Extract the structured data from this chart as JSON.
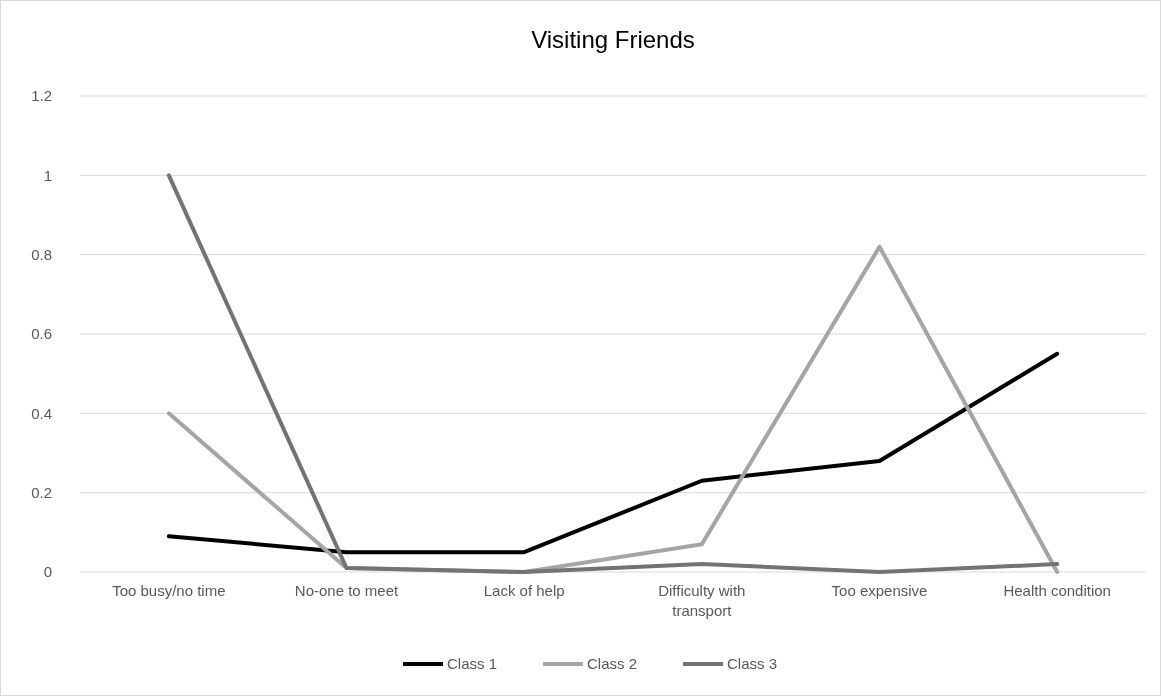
{
  "chart_data": {
    "type": "line",
    "title": "Visiting Friends",
    "categories": [
      "Too busy/no time",
      "No-one to meet",
      "Lack of help",
      "Difficulty with transport",
      "Too expensive",
      "Health condition"
    ],
    "series": [
      {
        "name": "Class 1",
        "color": "#000000",
        "values": [
          0.09,
          0.05,
          0.05,
          0.23,
          0.28,
          0.55
        ]
      },
      {
        "name": "Class 2",
        "color": "#a5a5a5",
        "values": [
          0.4,
          0.01,
          0,
          0.07,
          0.82,
          0
        ]
      },
      {
        "name": "Class 3",
        "color": "#737373",
        "values": [
          1,
          0.01,
          0,
          0.02,
          0,
          0.02
        ]
      }
    ],
    "ylim": [
      0,
      1.2
    ],
    "yticks": [
      0,
      0.2,
      0.4,
      0.6,
      0.8,
      1,
      1.2
    ],
    "grid": "y",
    "legend": "bottom",
    "marker": "none",
    "line_style": "solid"
  }
}
